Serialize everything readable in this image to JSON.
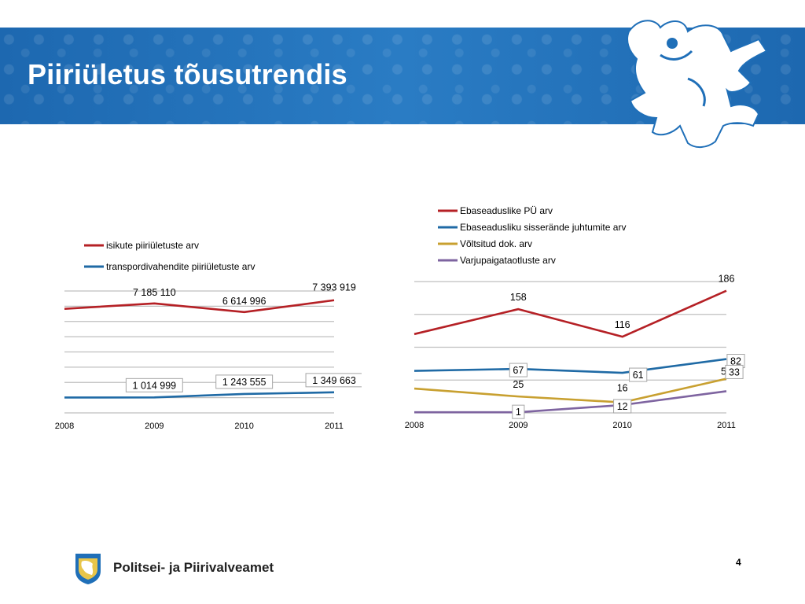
{
  "slide": {
    "title": "Piiriületus tõusutrendis",
    "footer_name": "Politsei- ja Piirivalveamet",
    "page_number": "4"
  },
  "colors": {
    "banner": "#1f6fb8",
    "red": "#b52025",
    "blue": "#1f6aa5",
    "gold": "#c8a030",
    "purple": "#7e64a0",
    "grid": "#bfbfbf"
  },
  "chart_data": [
    {
      "type": "line",
      "categories": [
        "2008",
        "2009",
        "2010",
        "2011"
      ],
      "series": [
        {
          "name": "isikute piiriületuste arv",
          "values": [
            6830000,
            7185110,
            6614996,
            7393919
          ],
          "labels": [
            "",
            "7 185 110",
            "6 614 996",
            "7 393 919"
          ],
          "color": "#b52025"
        },
        {
          "name": "transpordivahendite piiriületuste arv",
          "values": [
            1010000,
            1014999,
            1243555,
            1349663
          ],
          "labels": [
            "",
            "1 014 999",
            "1 243 555",
            "1 349 663"
          ],
          "color": "#1f6aa5"
        }
      ],
      "ylim": [
        0,
        8000000
      ],
      "grid": true,
      "legend": "top"
    },
    {
      "type": "line",
      "categories": [
        "2008",
        "2009",
        "2010",
        "2011"
      ],
      "series": [
        {
          "name": "Ebaseaduslike PÜ arv",
          "values": [
            120,
            158,
            116,
            186
          ],
          "labels": [
            "",
            "158",
            "116",
            "186"
          ],
          "color": "#b52025"
        },
        {
          "name": "Ebaseadusliku sisserände juhtumite arv",
          "values": [
            64,
            67,
            61,
            82
          ],
          "labels": [
            "",
            "67",
            "61",
            "82"
          ],
          "color": "#1f6aa5"
        },
        {
          "name": "Võltsitud dok. arv",
          "values": [
            37,
            25,
            16,
            52
          ],
          "labels": [
            "",
            "25",
            "16",
            "52"
          ],
          "color": "#c8a030"
        },
        {
          "name": "Varjupaigataotluste arv",
          "values": [
            1,
            1,
            12,
            33
          ],
          "labels": [
            "",
            "1",
            "12",
            "33"
          ],
          "color": "#7e64a0"
        }
      ],
      "ylim": [
        0,
        200
      ],
      "grid": true,
      "legend": "top"
    }
  ]
}
